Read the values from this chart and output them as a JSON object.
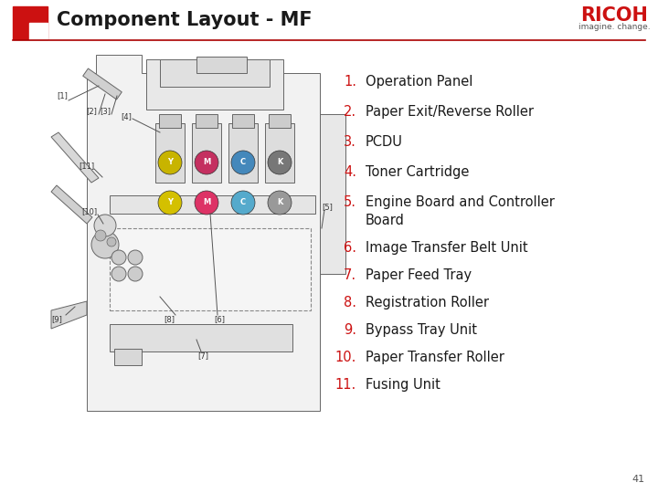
{
  "title": "Component Layout - MF",
  "bg_color": "#ffffff",
  "header_line_color": "#aa0000",
  "title_color": "#1a1a1a",
  "title_fontsize": 15,
  "red_square_color": "#cc1111",
  "ricoh_text_color": "#cc1111",
  "ricoh_sub_color": "#555555",
  "list_items": [
    {
      "num": "1.",
      "text": "Operation Panel"
    },
    {
      "num": "2.",
      "text": "Paper Exit/Reverse Roller"
    },
    {
      "num": "3.",
      "text": "PCDU"
    },
    {
      "num": "4.",
      "text": "Toner Cartridge"
    },
    {
      "num": "5.",
      "text": "Engine Board and Controller\nBoard"
    },
    {
      "num": "6.",
      "text": "Image Transfer Belt Unit"
    },
    {
      "num": "7.",
      "text": "Paper Feed Tray"
    },
    {
      "num": "8.",
      "text": "Registration Roller"
    },
    {
      "num": "9.",
      "text": "Bypass Tray Unit"
    },
    {
      "num": "10.",
      "text": "Paper Transfer Roller"
    },
    {
      "num": "11.",
      "text": "Fusing Unit"
    }
  ],
  "num_color": "#cc1111",
  "text_color": "#1a1a1a",
  "list_fontsize": 10.5,
  "page_number": "41",
  "ec": "#666666",
  "lw": 0.7
}
